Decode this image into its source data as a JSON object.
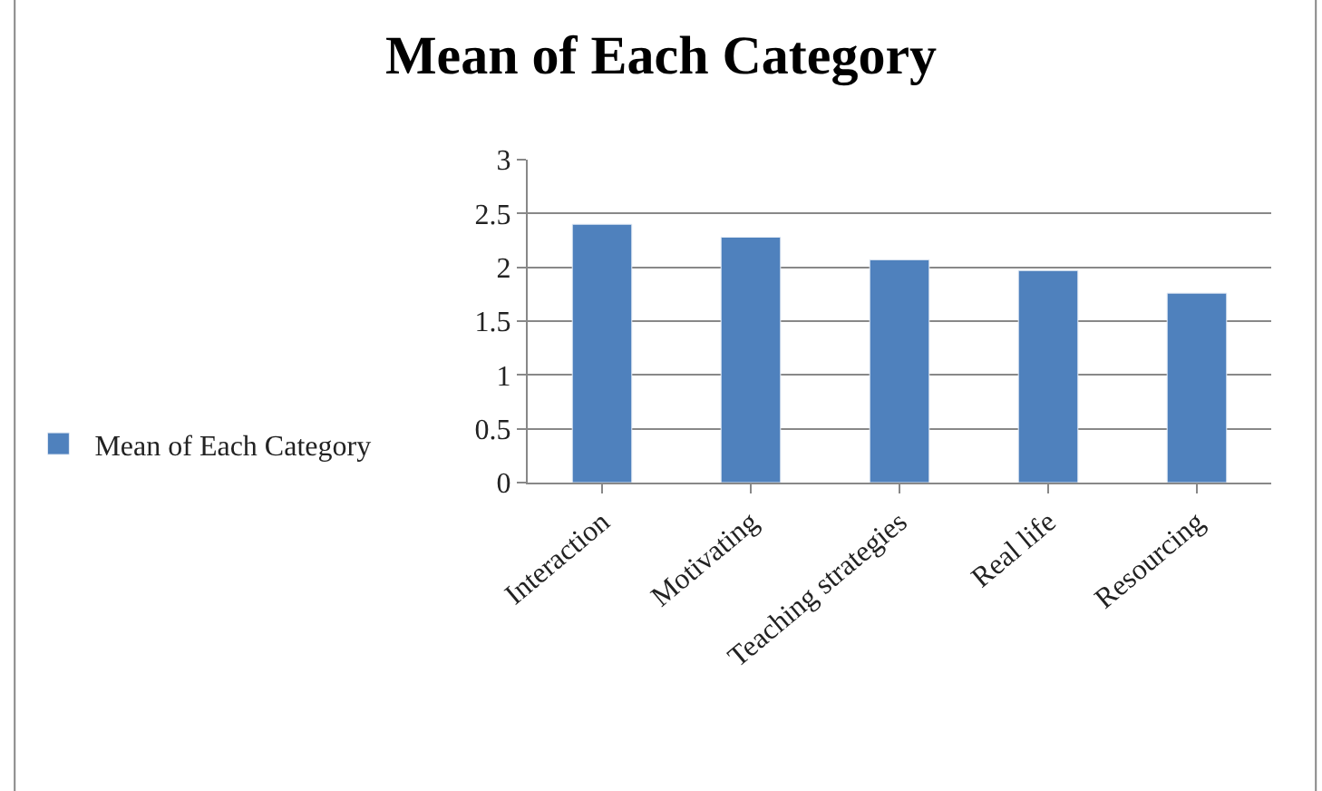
{
  "chart_data": {
    "type": "bar",
    "title": "Mean of Each Category",
    "categories": [
      "Interaction",
      "Motivating",
      "Teaching strategies",
      "Real life",
      "Resourcing"
    ],
    "series": [
      {
        "name": "Mean of Each Category",
        "color": "#4f81bd",
        "values": [
          2.4,
          2.28,
          2.07,
          1.97,
          1.76
        ]
      }
    ],
    "ylim": [
      0,
      3
    ],
    "yticks": [
      0,
      0.5,
      1,
      1.5,
      2,
      2.5,
      3
    ],
    "grid": "y",
    "legend": "left"
  }
}
